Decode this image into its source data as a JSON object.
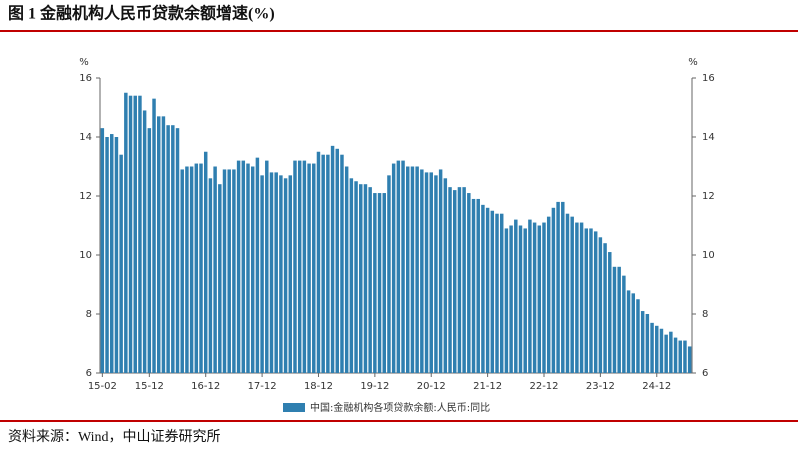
{
  "chart_data": {
    "type": "bar",
    "title": "图 1   金融机构人民币贷款余额增速(%)",
    "source": "资料来源：Wind，中山证券研究所",
    "y_label": "%",
    "y2_label": "%",
    "legend": "bottom",
    "color": "#2f7fb0",
    "categories": [
      "15-02",
      null,
      null,
      null,
      null,
      null,
      null,
      null,
      null,
      null,
      "15-12",
      null,
      null,
      null,
      null,
      null,
      null,
      null,
      null,
      null,
      null,
      null,
      "16-12",
      null,
      null,
      null,
      null,
      null,
      null,
      null,
      null,
      null,
      null,
      null,
      "17-12",
      null,
      null,
      null,
      null,
      null,
      null,
      null,
      null,
      null,
      null,
      null,
      "18-12",
      null,
      null,
      null,
      null,
      null,
      null,
      null,
      null,
      null,
      null,
      null,
      "19-12",
      null,
      null,
      null,
      null,
      null,
      null,
      null,
      null,
      null,
      null,
      null,
      "20-12",
      null,
      null,
      null,
      null,
      null,
      null,
      null,
      null,
      null,
      null,
      null,
      "21-12",
      null,
      null,
      null,
      null,
      null,
      null,
      null,
      null,
      null,
      null,
      null,
      "22-12",
      null,
      null,
      null,
      null,
      null,
      null,
      null,
      null,
      null,
      null,
      null,
      "23-12",
      null,
      null,
      null,
      null,
      null,
      null,
      null,
      null,
      null,
      null,
      null,
      "24-12",
      null,
      null,
      null,
      null,
      null,
      null,
      null
    ],
    "series": [
      {
        "name": "中国:金融机构各项贷款余额:人民币:同比",
        "color": "#2f7fb0",
        "values": [
          14.3,
          14.0,
          14.1,
          14.0,
          13.4,
          15.5,
          15.4,
          15.4,
          15.4,
          14.9,
          14.3,
          15.3,
          14.7,
          14.7,
          14.4,
          14.4,
          14.3,
          12.9,
          13.0,
          13.0,
          13.1,
          13.1,
          13.5,
          12.6,
          13.0,
          12.4,
          12.9,
          12.9,
          12.9,
          13.2,
          13.2,
          13.1,
          13.0,
          13.3,
          12.7,
          13.2,
          12.8,
          12.8,
          12.7,
          12.6,
          12.7,
          13.2,
          13.2,
          13.2,
          13.1,
          13.1,
          13.5,
          13.4,
          13.4,
          13.7,
          13.6,
          13.4,
          13.0,
          12.6,
          12.5,
          12.4,
          12.4,
          12.3,
          12.1,
          12.1,
          12.1,
          12.7,
          13.1,
          13.2,
          13.2,
          13.0,
          13.0,
          13.0,
          12.9,
          12.8,
          12.8,
          12.7,
          12.9,
          12.6,
          12.3,
          12.2,
          12.3,
          12.3,
          12.1,
          11.9,
          11.9,
          11.7,
          11.6,
          11.5,
          11.4,
          11.4,
          10.9,
          11.0,
          11.2,
          11.0,
          10.9,
          11.2,
          11.1,
          11.0,
          11.1,
          11.3,
          11.6,
          11.8,
          11.8,
          11.4,
          11.3,
          11.1,
          11.1,
          10.9,
          10.9,
          10.8,
          10.6,
          10.4,
          10.1,
          9.6,
          9.6,
          9.3,
          8.8,
          8.7,
          8.5,
          8.1,
          8.0,
          7.7,
          7.6,
          7.5,
          7.3,
          7.4,
          7.2,
          7.1,
          7.1,
          6.9
        ]
      }
    ],
    "ylim": [
      6,
      16
    ],
    "yticks": [
      6,
      8,
      10,
      12,
      14,
      16
    ],
    "y2lim": [
      6,
      16
    ],
    "y2ticks": [
      6,
      8,
      10,
      12,
      14,
      16
    ]
  }
}
